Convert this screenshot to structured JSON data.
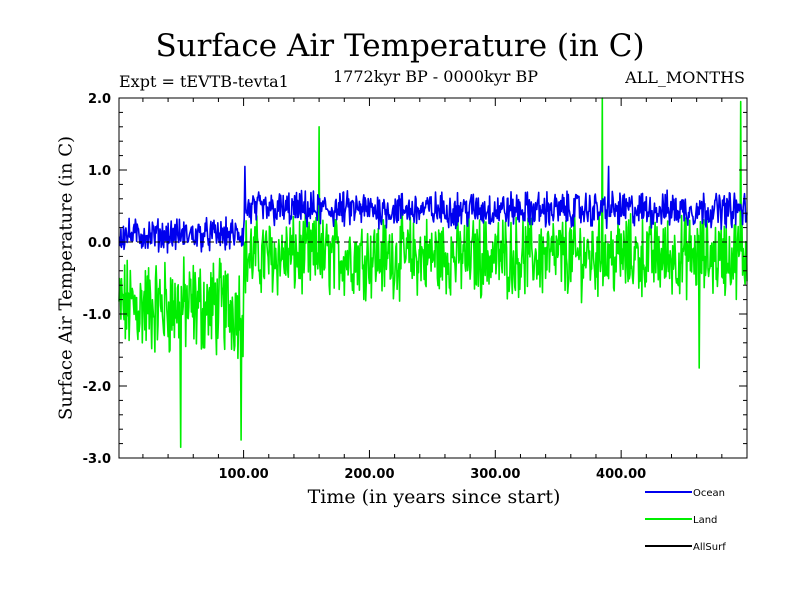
{
  "chart_data": {
    "type": "line",
    "title": "Surface Air Temperature (in C)",
    "subtitle_left": "Expt = tEVTB-tevta1",
    "subtitle_center": "1772kyr BP - 0000kyr BP",
    "subtitle_right": "ALL_MONTHS",
    "xlabel": "Time (in years since start)",
    "ylabel": "Surface Air Temperature (in C)",
    "xlim": [
      1,
      500
    ],
    "ylim": [
      -3.0,
      2.0
    ],
    "x_ticks": [
      100,
      200,
      300,
      400
    ],
    "x_tick_labels": [
      "100.00",
      "200.00",
      "300.00",
      "400.00"
    ],
    "y_ticks": [
      -3.0,
      -2.0,
      -1.0,
      0.0,
      1.0,
      2.0
    ],
    "y_tick_labels": [
      "-3.0",
      "-2.0",
      "-1.0",
      "0.0",
      "1.0",
      "2.0"
    ],
    "reference_line": 0.0,
    "legend_position": "bottom-right",
    "series": [
      {
        "name": "Land",
        "color": "#00ee00",
        "segments": [
          {
            "x_start": 1,
            "x_end": 100,
            "mean": -0.9,
            "amplitude": 0.55
          },
          {
            "x_start": 100,
            "x_end": 500,
            "mean": -0.2,
            "amplitude": 0.45
          }
        ],
        "extremes": [
          {
            "x": 50,
            "y": -2.85
          },
          {
            "x": 98,
            "y": -2.75
          },
          {
            "x": 385,
            "y": 2.0
          },
          {
            "x": 462,
            "y": -1.75
          },
          {
            "x": 160,
            "y": 1.6
          },
          {
            "x": 495,
            "y": 1.95
          }
        ]
      },
      {
        "name": "Ocean",
        "color": "#0000ee",
        "segments": [
          {
            "x_start": 1,
            "x_end": 100,
            "mean": 0.1,
            "amplitude": 0.18
          },
          {
            "x_start": 100,
            "x_end": 500,
            "mean": 0.45,
            "amplitude": 0.2
          }
        ],
        "extremes": [
          {
            "x": 101,
            "y": 1.05
          },
          {
            "x": 390,
            "y": 1.05
          }
        ]
      },
      {
        "name": "AllSurf",
        "color": "#000000",
        "segments": []
      }
    ],
    "legend": [
      {
        "name": "Ocean",
        "color": "#0000ee"
      },
      {
        "name": "Land",
        "color": "#00ee00"
      },
      {
        "name": "AllSurf",
        "color": "#000000"
      }
    ]
  }
}
